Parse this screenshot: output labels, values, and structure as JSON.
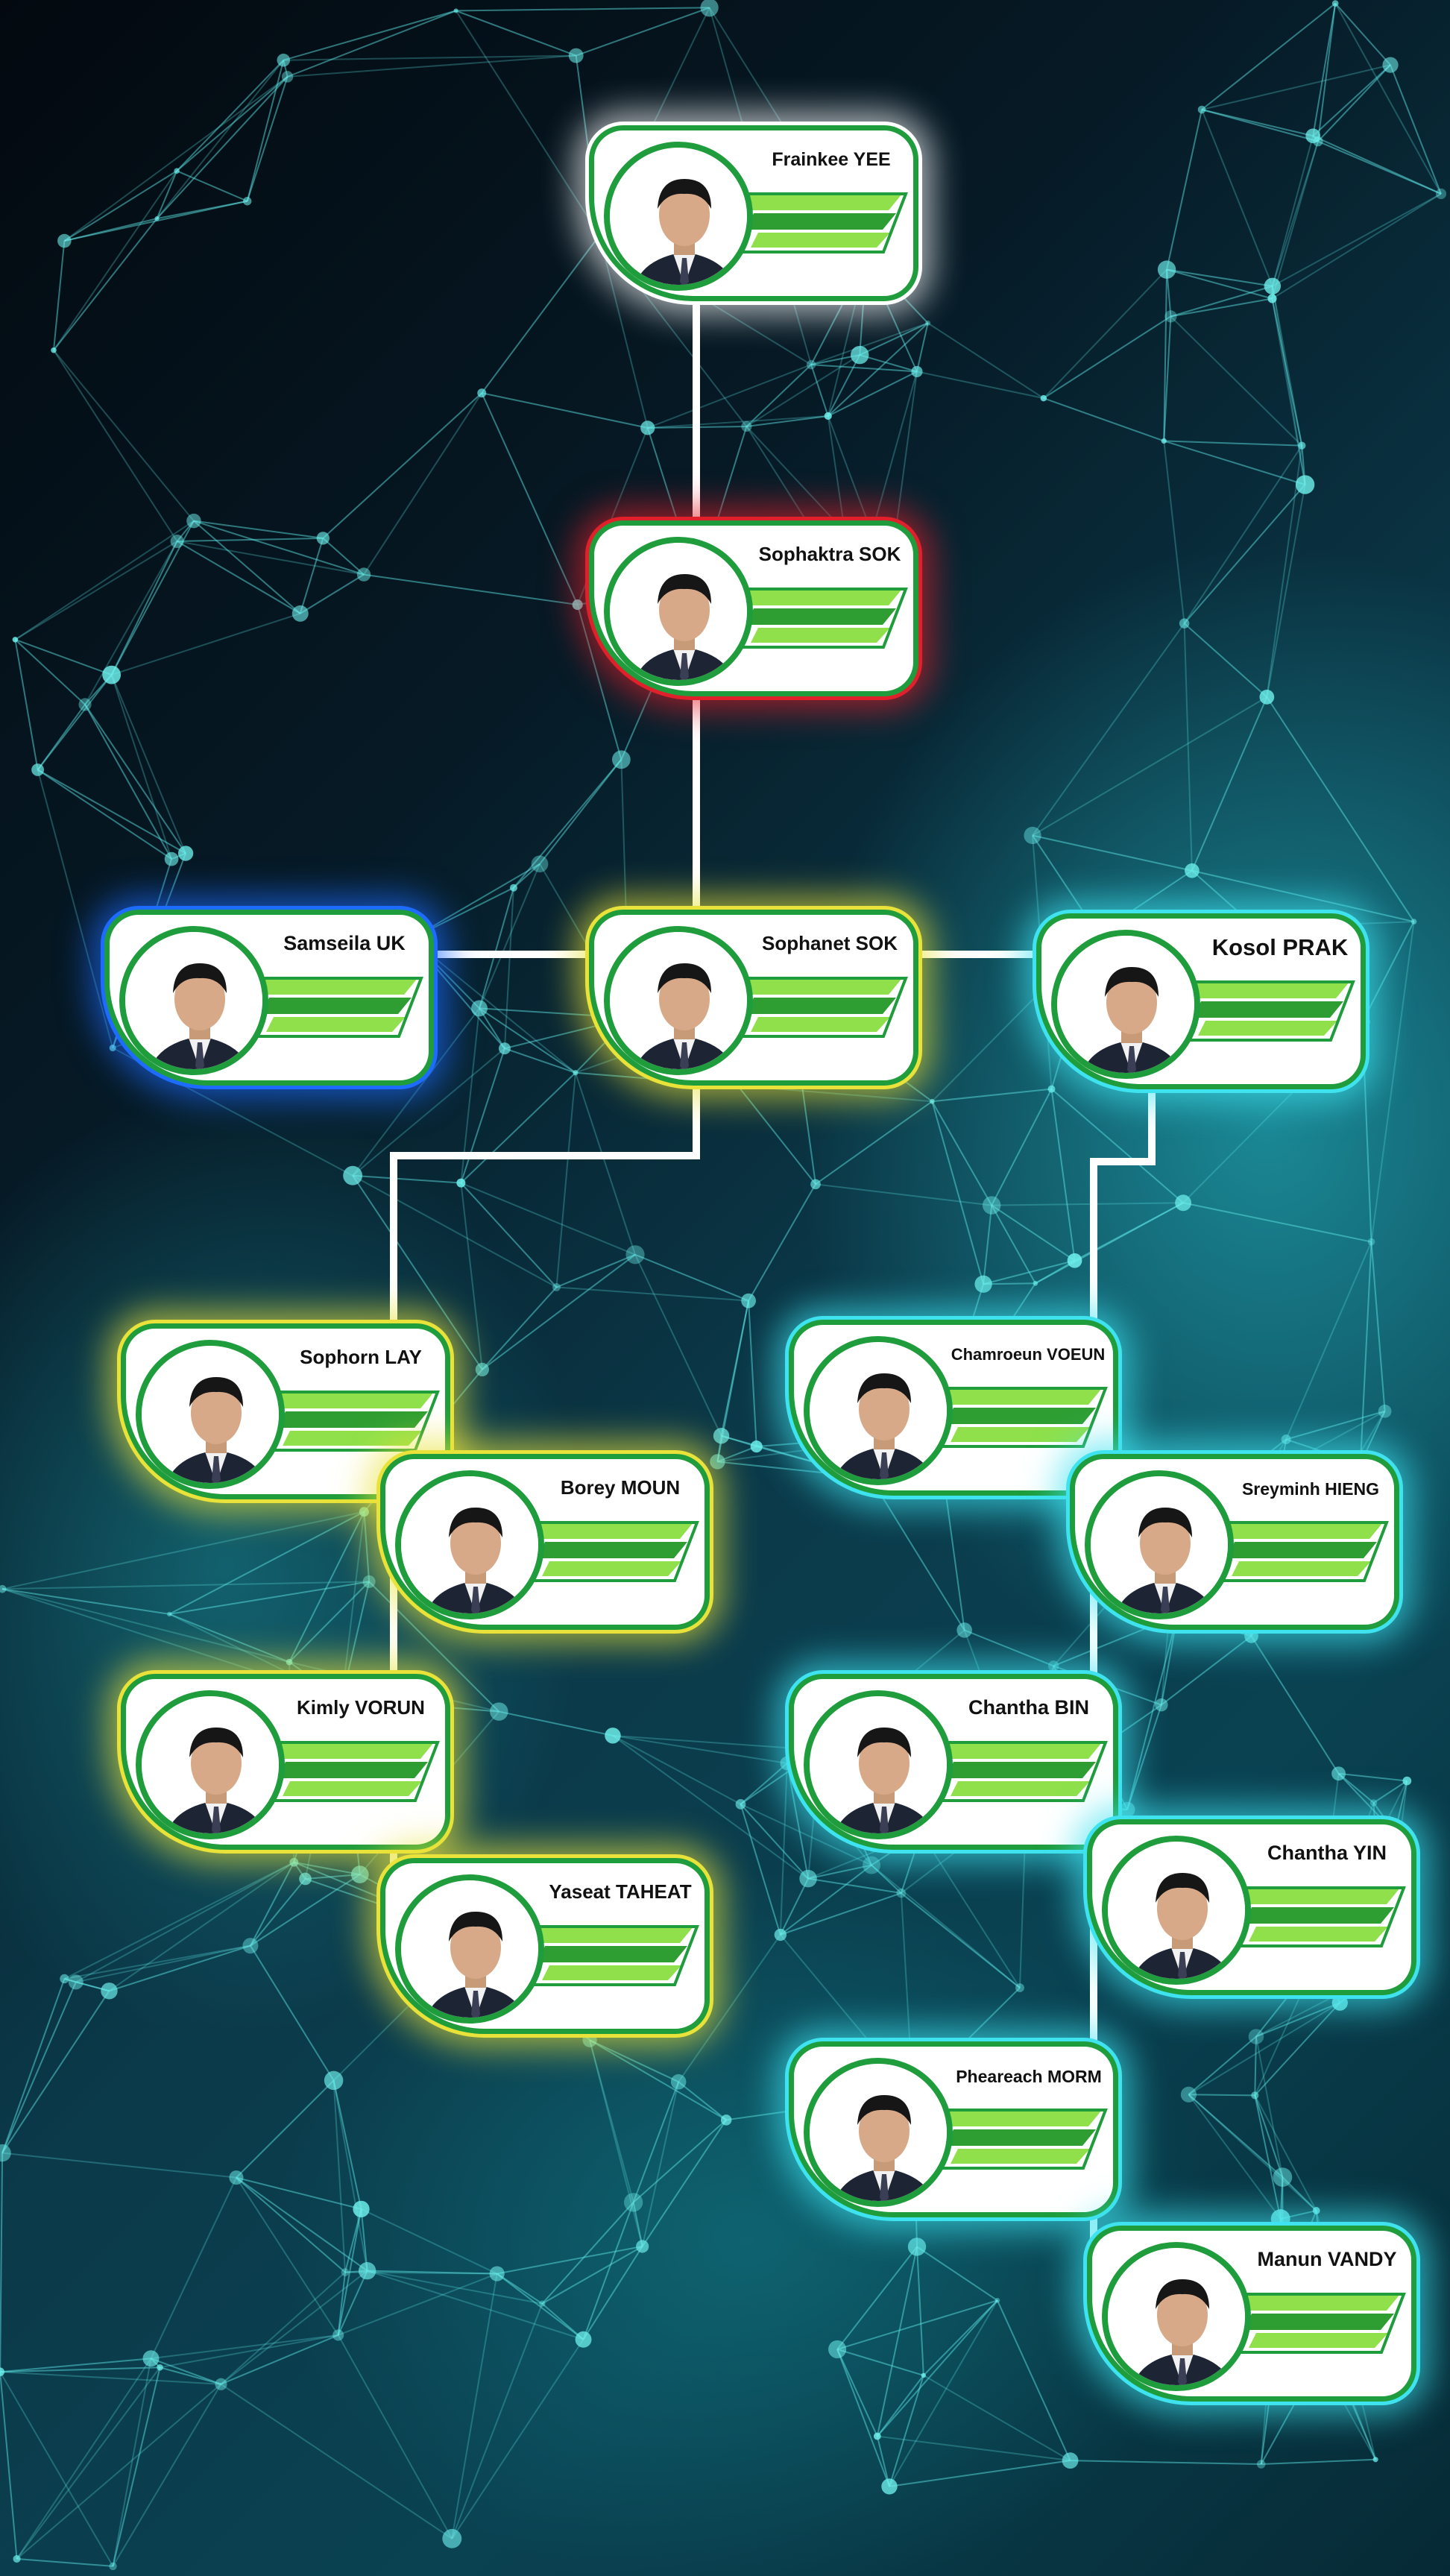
{
  "colors": {
    "card_border": "#1f9c3c",
    "ribbon_light": "#8fe04a",
    "ribbon_dark": "#2e9e32",
    "connector": "#ffffff",
    "glow_white": "#ffffff",
    "glow_red": "#e0202a",
    "glow_yellow": "#e8e23a",
    "glow_blue": "#1e6cff",
    "glow_cyan": "#3fe3ef"
  },
  "members": [
    {
      "id": "frainkee-yee",
      "name": "Frainkee YEE",
      "glow": "white"
    },
    {
      "id": "sophaktra-sok",
      "name": "Sophaktra SOK",
      "glow": "red"
    },
    {
      "id": "samseila-uk",
      "name": "Samseila UK",
      "glow": "blue"
    },
    {
      "id": "sophanet-sok",
      "name": "Sophanet SOK",
      "glow": "yellow"
    },
    {
      "id": "kosol-prak",
      "name": "Kosol PRAK",
      "glow": "cyan"
    },
    {
      "id": "sophorn-lay",
      "name": "Sophorn LAY",
      "glow": "yellow"
    },
    {
      "id": "borey-moun",
      "name": "Borey MOUN",
      "glow": "yellow"
    },
    {
      "id": "kimly-vorun",
      "name": "Kimly VORUN",
      "glow": "yellow"
    },
    {
      "id": "yaseat-taheat",
      "name": "Yaseat TAHEAT",
      "glow": "yellow"
    },
    {
      "id": "chamroeun-voeun",
      "name": "Chamroeun VOEUN",
      "glow": "cyan"
    },
    {
      "id": "sreyminh-hieng",
      "name": "Sreyminh HIENG",
      "glow": "cyan"
    },
    {
      "id": "chantha-bin",
      "name": "Chantha BIN",
      "glow": "cyan"
    },
    {
      "id": "chantha-yin",
      "name": "Chantha YIN",
      "glow": "cyan"
    },
    {
      "id": "pheareach-morm",
      "name": "Pheareach MORM",
      "glow": "cyan"
    },
    {
      "id": "manun-vandy",
      "name": "Manun VANDY",
      "glow": "cyan"
    }
  ],
  "reporting_lines": [
    {
      "from": "frainkee-yee",
      "to": "sophaktra-sok"
    },
    {
      "from": "sophaktra-sok",
      "to": "sophanet-sok"
    },
    {
      "from": "sophanet-sok",
      "to": "samseila-uk"
    },
    {
      "from": "sophanet-sok",
      "to": "kosol-prak"
    },
    {
      "from": "sophanet-sok",
      "to": "sophorn-lay"
    },
    {
      "from": "sophanet-sok",
      "to": "borey-moun"
    },
    {
      "from": "sophanet-sok",
      "to": "kimly-vorun"
    },
    {
      "from": "sophanet-sok",
      "to": "yaseat-taheat"
    },
    {
      "from": "kosol-prak",
      "to": "chamroeun-voeun"
    },
    {
      "from": "kosol-prak",
      "to": "sreyminh-hieng"
    },
    {
      "from": "kosol-prak",
      "to": "chantha-bin"
    },
    {
      "from": "kosol-prak",
      "to": "chantha-yin"
    },
    {
      "from": "kosol-prak",
      "to": "pheareach-morm"
    },
    {
      "from": "kosol-prak",
      "to": "manun-vandy"
    }
  ]
}
